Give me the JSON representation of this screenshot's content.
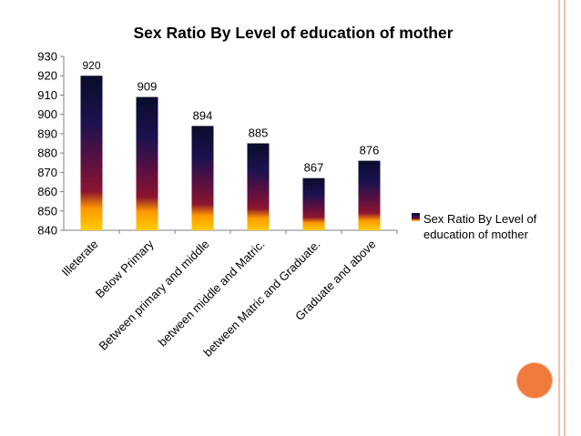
{
  "chart_data": {
    "type": "bar",
    "title": "Sex Ratio By Level of education of mother",
    "xlabel": "",
    "ylabel": "",
    "categories": [
      "Illeterate",
      "Below Primary",
      "Between primary and middle",
      "between middle and Matric.",
      "between Matric and Graduate.",
      "Graduate and above"
    ],
    "series": [
      {
        "name": "Sex Ratio By Level of education of mother",
        "values": [
          920,
          909,
          894,
          885,
          867,
          876
        ],
        "data_labels": [
          "920",
          "909",
          "894",
          "885",
          "867",
          "876"
        ]
      }
    ],
    "ylim": [
      840,
      930
    ],
    "yticks": [
      "840",
      "850",
      "860",
      "870",
      "880",
      "890",
      "900",
      "910",
      "920",
      "930"
    ],
    "grid": false,
    "legend_position": "right",
    "legend_lines": [
      "Sex Ratio By Level of",
      "education of mother"
    ],
    "bar_gradient": [
      "#0b0c2a",
      "#1a1250",
      "#5a1040",
      "#8c1530",
      "#ff9900",
      "#ffcc00"
    ]
  },
  "colors": {
    "accent_circle": "#f07a3c",
    "border_line": "#f4c2ad",
    "axis": "#808080"
  }
}
